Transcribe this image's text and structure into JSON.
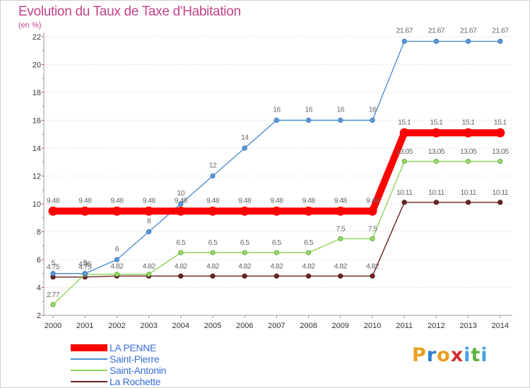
{
  "chart_data": {
    "type": "line",
    "title": "Evolution du Taux de Taxe d'Habitation",
    "ylabel": "(en %)",
    "xlabel": "",
    "ylim": [
      2,
      22
    ],
    "yticks": [
      2,
      4,
      6,
      8,
      10,
      12,
      14,
      16,
      18,
      20,
      22
    ],
    "grid": "horizontal dotted",
    "legend": "bottom-left",
    "x": [
      "2000",
      "2001",
      "2002",
      "2003",
      "2004",
      "2005",
      "2006",
      "2007",
      "2008",
      "2009",
      "2010",
      "2011",
      "2012",
      "2013",
      "2014"
    ],
    "series": [
      {
        "name": "LA PENNE",
        "color": "#ff0000",
        "values": [
          9.48,
          9.48,
          9.48,
          9.48,
          9.48,
          9.48,
          9.48,
          9.48,
          9.48,
          9.48,
          9.48,
          15.1,
          15.1,
          15.1,
          15.1
        ],
        "labels": [
          "9.48",
          "9.48",
          "9.48",
          "9.48",
          "9.48",
          "9.48",
          "9.48",
          "9.48",
          "9.48",
          "9.48",
          "9.48",
          "15.1",
          "15.1",
          "15.1",
          "15.1"
        ]
      },
      {
        "name": "Saint-Pierre",
        "color": "#4a8fd4",
        "values": [
          5,
          5,
          6,
          8,
          10,
          12,
          14,
          16,
          16,
          16,
          16,
          21.67,
          21.67,
          21.67,
          21.67
        ],
        "labels": [
          "5",
          "5",
          "6",
          "8",
          "10",
          "12",
          "14",
          "16",
          "16",
          "16",
          "16",
          "21.67",
          "21.67",
          "21.67",
          "21.67"
        ]
      },
      {
        "name": "Saint-Antonin",
        "color": "#8fd45a",
        "values": [
          2.77,
          4.95,
          4.95,
          4.95,
          6.5,
          6.5,
          6.5,
          6.5,
          6.5,
          7.5,
          7.5,
          13.05,
          13.05,
          13.05,
          13.05
        ],
        "labels": [
          "2.77",
          "4.95",
          "",
          "",
          "6.5",
          "6.5",
          "6.5",
          "6.5",
          "6.5",
          "7.5",
          "7.5",
          "13.05",
          "13.05",
          "13.05",
          "13.05"
        ]
      },
      {
        "name": "La Rochette",
        "color": "#6b2020",
        "values": [
          4.75,
          4.75,
          4.82,
          4.82,
          4.82,
          4.82,
          4.82,
          4.82,
          4.82,
          4.82,
          4.82,
          10.11,
          10.11,
          10.11,
          10.11
        ],
        "labels": [
          "4.75",
          "4.75",
          "4.82",
          "4.82",
          "4.82",
          "4.82",
          "4.82",
          "4.82",
          "4.82",
          "4.82",
          "4.82",
          "10.11",
          "10.11",
          "10.11",
          "10.11"
        ]
      }
    ]
  },
  "logo": {
    "text": "Proxiti",
    "letters": [
      "P",
      "r",
      "o",
      "x",
      "i",
      "t",
      "i"
    ],
    "colors": [
      "#e8a020",
      "#2d7fd0",
      "#e8a020",
      "#d03030",
      "#4aa0e0",
      "#60b040",
      "#4aa0e0"
    ]
  }
}
